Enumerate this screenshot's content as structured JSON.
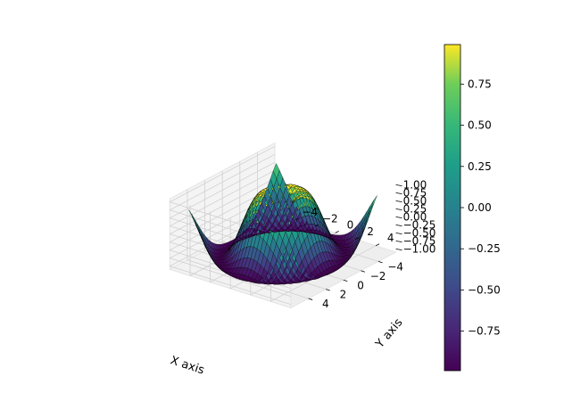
{
  "chart_data": {
    "type": "surface",
    "function": "z = sin(sqrt(x^2 + y^2)) over a disc-shaped grid clipped to [-1, 1]",
    "x_range": [
      -5,
      5
    ],
    "y_range": [
      -5,
      5
    ],
    "z_range": [
      -1,
      1
    ],
    "xlabel": "X axis",
    "ylabel": "Y axis",
    "zlabel": "",
    "x_ticks": [
      "−4",
      "−2",
      "0",
      "2",
      "4"
    ],
    "y_ticks": [
      "−4",
      "−2",
      "0",
      "2",
      "4"
    ],
    "z_ticks": [
      "−1.00",
      "−0.75",
      "−0.50",
      "−0.25",
      "0.00",
      "0.25",
      "0.50",
      "0.75",
      "1.00"
    ],
    "colormap": "viridis",
    "colorbar": {
      "range": [
        -0.99,
        0.99
      ],
      "ticks": [
        "−0.75",
        "−0.50",
        "−0.25",
        "0.00",
        "0.25",
        "0.50",
        "0.75"
      ],
      "tick_values": [
        -0.75,
        -0.5,
        -0.25,
        0,
        0.25,
        0.5,
        0.75
      ]
    },
    "grid": true,
    "edge_color": "#000000",
    "pane_color": "#f2f2f2"
  }
}
